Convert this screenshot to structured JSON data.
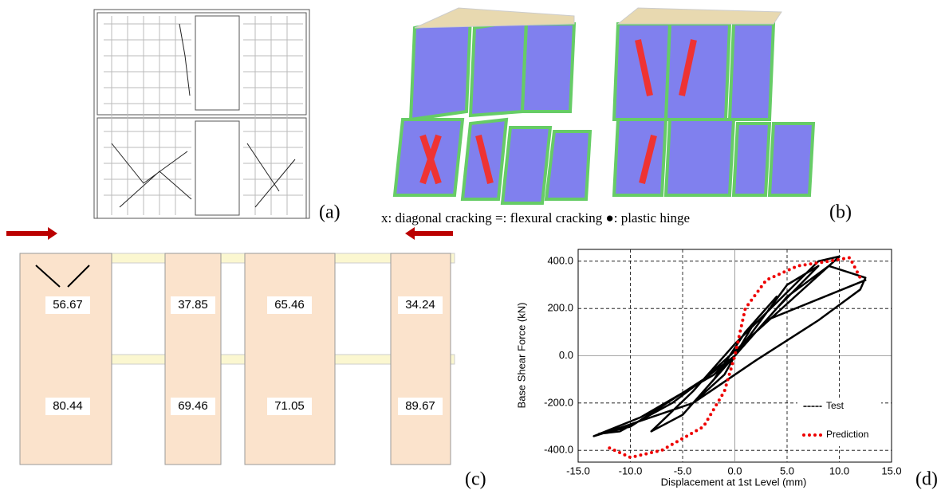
{
  "panels": {
    "a": {
      "label": "(a)"
    },
    "b": {
      "label": "(b)",
      "legend": "x: diagonal cracking   =: flexural cracking   ●: plastic hinge"
    },
    "c": {
      "label": "(c)",
      "values": [
        [
          56.67,
          37.85,
          65.46,
          34.24
        ],
        [
          80.44,
          69.46,
          71.05,
          89.67
        ]
      ]
    },
    "d": {
      "label": "(d)"
    }
  },
  "chart_data": {
    "type": "line",
    "x_label": "Displacement at 1st Level (mm)",
    "y_label": "Base Shear Force (kN)",
    "xlim": [
      -15,
      15
    ],
    "ylim": [
      -450,
      450
    ],
    "xticks": [
      {
        "value": -15,
        "label": "-15.0"
      },
      {
        "value": -10,
        "label": "-10.0"
      },
      {
        "value": -5,
        "label": "-5.0"
      },
      {
        "value": 0,
        "label": "0.0"
      },
      {
        "value": 5,
        "label": "5.0"
      },
      {
        "value": 10,
        "label": "10.0"
      },
      {
        "value": 15,
        "label": "15.0"
      }
    ],
    "yticks": [
      {
        "value": -400,
        "label": "-400.0"
      },
      {
        "value": -200,
        "label": "-200.0"
      },
      {
        "value": 0,
        "label": "0.0"
      },
      {
        "value": 200,
        "label": "200.0"
      },
      {
        "value": 400,
        "label": "400.0"
      }
    ],
    "grid": true,
    "series": [
      {
        "name": "Test",
        "color": "#000000",
        "x": [
          0,
          2,
          4,
          1,
          -2,
          -4,
          -1,
          0,
          5,
          8,
          4,
          0,
          -5,
          -8,
          -4,
          0,
          8,
          10,
          7,
          2,
          -3,
          -10,
          -13,
          -11,
          -6,
          0,
          5,
          9,
          12.5,
          12,
          8,
          2,
          -4,
          -12,
          -13.5,
          -9,
          -2,
          0,
          3,
          12.5
        ],
        "values": [
          0,
          150,
          250,
          100,
          -100,
          -200,
          -80,
          0,
          300,
          380,
          200,
          0,
          -250,
          -320,
          -150,
          50,
          400,
          420,
          300,
          100,
          -100,
          -300,
          -330,
          -320,
          -200,
          0,
          250,
          380,
          330,
          280,
          150,
          -20,
          -200,
          -320,
          -340,
          -260,
          -80,
          0,
          150,
          320
        ]
      },
      {
        "name": "Prediction",
        "color": "#ee0000",
        "x": [
          -12,
          -10,
          -7,
          -3,
          -1,
          0,
          1,
          3,
          6,
          9,
          11,
          12
        ],
        "values": [
          -390,
          -430,
          -400,
          -300,
          -150,
          0,
          200,
          320,
          380,
          400,
          415,
          330
        ]
      }
    ]
  }
}
